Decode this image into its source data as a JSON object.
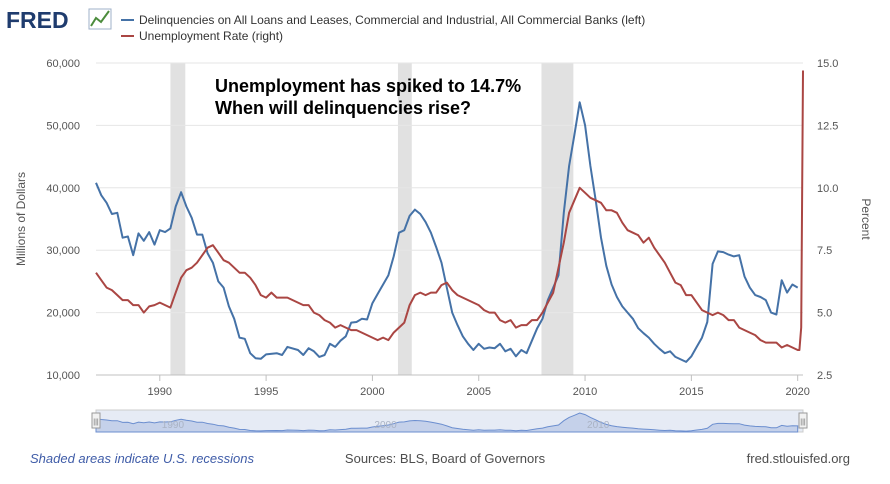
{
  "brand": {
    "logo_text": "FRED"
  },
  "colors": {
    "left_series": "#4572a7",
    "right_series": "#aa4643",
    "recession": "#e1e1e1",
    "grid": "#e6e6e6",
    "navigator_fill": "#c5d1ea",
    "navigator_line": "#6b8ecf"
  },
  "chart_data": {
    "type": "line",
    "title": "",
    "annotation": [
      "Unemployment has spiked to 14.7%",
      "When will delinquencies rise?"
    ],
    "xlabel": "",
    "x_ticks": [
      "1990",
      "1995",
      "2000",
      "2005",
      "2010",
      "2015",
      "2020"
    ],
    "xlim": [
      1987.0,
      2020.25
    ],
    "y_left": {
      "label": "Millions of Dollars",
      "range": [
        10000,
        60000
      ],
      "ticks": [
        "10,000",
        "20,000",
        "30,000",
        "40,000",
        "50,000",
        "60,000"
      ]
    },
    "y_right": {
      "label": "Percent",
      "range": [
        2.5,
        15.0
      ],
      "ticks": [
        "2.5",
        "5.0",
        "7.5",
        "10.0",
        "12.5",
        "15.0"
      ]
    },
    "grid": true,
    "legend_position": "top-left",
    "recessions": [
      [
        1990.5,
        1991.2
      ],
      [
        2001.2,
        2001.85
      ],
      [
        2007.95,
        2009.45
      ]
    ],
    "series": [
      {
        "name": "Delinquencies on All Loans and Leases, Commercial and Industrial, All Commercial Banks (left)",
        "axis": "left",
        "points": [
          [
            1987.0,
            40800
          ],
          [
            1987.25,
            38800
          ],
          [
            1987.5,
            37600
          ],
          [
            1987.75,
            35800
          ],
          [
            1988.0,
            36000
          ],
          [
            1988.25,
            32000
          ],
          [
            1988.5,
            32200
          ],
          [
            1988.75,
            29200
          ],
          [
            1989.0,
            32700
          ],
          [
            1989.25,
            31500
          ],
          [
            1989.5,
            32900
          ],
          [
            1989.75,
            30900
          ],
          [
            1990.0,
            33200
          ],
          [
            1990.25,
            32900
          ],
          [
            1990.5,
            33500
          ],
          [
            1990.75,
            37000
          ],
          [
            1991.0,
            39300
          ],
          [
            1991.25,
            37000
          ],
          [
            1991.5,
            35200
          ],
          [
            1991.75,
            32500
          ],
          [
            1992.0,
            32500
          ],
          [
            1992.25,
            29500
          ],
          [
            1992.5,
            28000
          ],
          [
            1992.75,
            25000
          ],
          [
            1993.0,
            24000
          ],
          [
            1993.25,
            21000
          ],
          [
            1993.5,
            19000
          ],
          [
            1993.75,
            16000
          ],
          [
            1994.0,
            15800
          ],
          [
            1994.25,
            13500
          ],
          [
            1994.5,
            12700
          ],
          [
            1994.75,
            12600
          ],
          [
            1995.0,
            13300
          ],
          [
            1995.5,
            13500
          ],
          [
            1995.75,
            13200
          ],
          [
            1996.0,
            14500
          ],
          [
            1996.5,
            14000
          ],
          [
            1996.75,
            13200
          ],
          [
            1997.0,
            14300
          ],
          [
            1997.25,
            13800
          ],
          [
            1997.5,
            12900
          ],
          [
            1997.75,
            13200
          ],
          [
            1998.0,
            15000
          ],
          [
            1998.25,
            14500
          ],
          [
            1998.5,
            15500
          ],
          [
            1998.75,
            16200
          ],
          [
            1999.0,
            18400
          ],
          [
            1999.25,
            18500
          ],
          [
            1999.5,
            19000
          ],
          [
            1999.75,
            18900
          ],
          [
            2000.0,
            21500
          ],
          [
            2000.25,
            23000
          ],
          [
            2000.5,
            24500
          ],
          [
            2000.75,
            26000
          ],
          [
            2001.0,
            29000
          ],
          [
            2001.25,
            32800
          ],
          [
            2001.5,
            33200
          ],
          [
            2001.75,
            35500
          ],
          [
            2002.0,
            36500
          ],
          [
            2002.25,
            35800
          ],
          [
            2002.5,
            34500
          ],
          [
            2002.75,
            32800
          ],
          [
            2003.0,
            30500
          ],
          [
            2003.25,
            28000
          ],
          [
            2003.5,
            24000
          ],
          [
            2003.75,
            20000
          ],
          [
            2004.0,
            18000
          ],
          [
            2004.25,
            16200
          ],
          [
            2004.5,
            15000
          ],
          [
            2004.75,
            14000
          ],
          [
            2005.0,
            15000
          ],
          [
            2005.25,
            14200
          ],
          [
            2005.5,
            14400
          ],
          [
            2005.75,
            14300
          ],
          [
            2006.0,
            15000
          ],
          [
            2006.25,
            13800
          ],
          [
            2006.5,
            14200
          ],
          [
            2006.75,
            13000
          ],
          [
            2007.0,
            14000
          ],
          [
            2007.25,
            13500
          ],
          [
            2007.5,
            15500
          ],
          [
            2007.75,
            17500
          ],
          [
            2008.0,
            19000
          ],
          [
            2008.25,
            22000
          ],
          [
            2008.5,
            24000
          ],
          [
            2008.75,
            26000
          ],
          [
            2009.0,
            36000
          ],
          [
            2009.25,
            43500
          ],
          [
            2009.5,
            48500
          ],
          [
            2009.75,
            53700
          ],
          [
            2010.0,
            50000
          ],
          [
            2010.25,
            43500
          ],
          [
            2010.5,
            38000
          ],
          [
            2010.75,
            32000
          ],
          [
            2011.0,
            27500
          ],
          [
            2011.25,
            24500
          ],
          [
            2011.5,
            22500
          ],
          [
            2011.75,
            21000
          ],
          [
            2012.0,
            20000
          ],
          [
            2012.25,
            19000
          ],
          [
            2012.5,
            17500
          ],
          [
            2012.75,
            16700
          ],
          [
            2013.0,
            16000
          ],
          [
            2013.25,
            15000
          ],
          [
            2013.5,
            14200
          ],
          [
            2013.75,
            13500
          ],
          [
            2014.0,
            13800
          ],
          [
            2014.25,
            12900
          ],
          [
            2014.5,
            12500
          ],
          [
            2014.75,
            12100
          ],
          [
            2015.0,
            13000
          ],
          [
            2015.25,
            14500
          ],
          [
            2015.5,
            16000
          ],
          [
            2015.75,
            18500
          ],
          [
            2016.0,
            27800
          ],
          [
            2016.25,
            29800
          ],
          [
            2016.5,
            29700
          ],
          [
            2016.75,
            29300
          ],
          [
            2017.0,
            29000
          ],
          [
            2017.25,
            29200
          ],
          [
            2017.5,
            25800
          ],
          [
            2017.75,
            24000
          ],
          [
            2018.0,
            22800
          ],
          [
            2018.25,
            22500
          ],
          [
            2018.5,
            22000
          ],
          [
            2018.75,
            20000
          ],
          [
            2019.0,
            19700
          ],
          [
            2019.25,
            25200
          ],
          [
            2019.5,
            23200
          ],
          [
            2019.75,
            24500
          ],
          [
            2020.0,
            24000
          ]
        ]
      },
      {
        "name": "Unemployment Rate (right)",
        "axis": "right",
        "points": [
          [
            1987.0,
            6.6
          ],
          [
            1987.25,
            6.3
          ],
          [
            1987.5,
            6.0
          ],
          [
            1987.75,
            5.9
          ],
          [
            1988.0,
            5.7
          ],
          [
            1988.25,
            5.5
          ],
          [
            1988.5,
            5.5
          ],
          [
            1988.75,
            5.3
          ],
          [
            1989.0,
            5.3
          ],
          [
            1989.25,
            5.0
          ],
          [
            1989.5,
            5.25
          ],
          [
            1989.75,
            5.3
          ],
          [
            1990.0,
            5.4
          ],
          [
            1990.25,
            5.3
          ],
          [
            1990.5,
            5.2
          ],
          [
            1990.75,
            5.8
          ],
          [
            1991.0,
            6.4
          ],
          [
            1991.25,
            6.7
          ],
          [
            1991.5,
            6.8
          ],
          [
            1991.75,
            7.0
          ],
          [
            1992.0,
            7.3
          ],
          [
            1992.25,
            7.6
          ],
          [
            1992.5,
            7.7
          ],
          [
            1992.75,
            7.4
          ],
          [
            1993.0,
            7.1
          ],
          [
            1993.25,
            7.0
          ],
          [
            1993.5,
            6.8
          ],
          [
            1993.75,
            6.6
          ],
          [
            1994.0,
            6.6
          ],
          [
            1994.25,
            6.4
          ],
          [
            1994.5,
            6.1
          ],
          [
            1994.75,
            5.7
          ],
          [
            1995.0,
            5.6
          ],
          [
            1995.25,
            5.8
          ],
          [
            1995.5,
            5.6
          ],
          [
            1995.75,
            5.6
          ],
          [
            1996.0,
            5.6
          ],
          [
            1996.25,
            5.5
          ],
          [
            1996.5,
            5.4
          ],
          [
            1996.75,
            5.3
          ],
          [
            1997.0,
            5.3
          ],
          [
            1997.25,
            5.0
          ],
          [
            1997.5,
            4.9
          ],
          [
            1997.75,
            4.7
          ],
          [
            1998.0,
            4.6
          ],
          [
            1998.25,
            4.4
          ],
          [
            1998.5,
            4.5
          ],
          [
            1998.75,
            4.4
          ],
          [
            1999.0,
            4.3
          ],
          [
            1999.25,
            4.3
          ],
          [
            1999.5,
            4.2
          ],
          [
            1999.75,
            4.1
          ],
          [
            2000.0,
            4.0
          ],
          [
            2000.25,
            3.9
          ],
          [
            2000.5,
            4.0
          ],
          [
            2000.75,
            3.9
          ],
          [
            2001.0,
            4.2
          ],
          [
            2001.25,
            4.4
          ],
          [
            2001.5,
            4.6
          ],
          [
            2001.75,
            5.3
          ],
          [
            2002.0,
            5.7
          ],
          [
            2002.25,
            5.8
          ],
          [
            2002.5,
            5.7
          ],
          [
            2002.75,
            5.8
          ],
          [
            2003.0,
            5.8
          ],
          [
            2003.25,
            6.1
          ],
          [
            2003.5,
            6.2
          ],
          [
            2003.75,
            5.9
          ],
          [
            2004.0,
            5.7
          ],
          [
            2004.25,
            5.6
          ],
          [
            2004.5,
            5.5
          ],
          [
            2004.75,
            5.4
          ],
          [
            2005.0,
            5.3
          ],
          [
            2005.25,
            5.1
          ],
          [
            2005.5,
            5.0
          ],
          [
            2005.75,
            5.0
          ],
          [
            2006.0,
            4.7
          ],
          [
            2006.25,
            4.6
          ],
          [
            2006.5,
            4.7
          ],
          [
            2006.75,
            4.4
          ],
          [
            2007.0,
            4.5
          ],
          [
            2007.25,
            4.5
          ],
          [
            2007.5,
            4.7
          ],
          [
            2007.75,
            4.7
          ],
          [
            2008.0,
            5.0
          ],
          [
            2008.25,
            5.4
          ],
          [
            2008.5,
            5.8
          ],
          [
            2008.75,
            6.8
          ],
          [
            2009.0,
            7.8
          ],
          [
            2009.25,
            9.0
          ],
          [
            2009.5,
            9.5
          ],
          [
            2009.75,
            10.0
          ],
          [
            2010.0,
            9.8
          ],
          [
            2010.25,
            9.6
          ],
          [
            2010.5,
            9.5
          ],
          [
            2010.75,
            9.4
          ],
          [
            2011.0,
            9.1
          ],
          [
            2011.25,
            9.1
          ],
          [
            2011.5,
            9.0
          ],
          [
            2011.75,
            8.6
          ],
          [
            2012.0,
            8.3
          ],
          [
            2012.25,
            8.2
          ],
          [
            2012.5,
            8.1
          ],
          [
            2012.75,
            7.8
          ],
          [
            2013.0,
            8.0
          ],
          [
            2013.25,
            7.6
          ],
          [
            2013.5,
            7.3
          ],
          [
            2013.75,
            7.0
          ],
          [
            2014.0,
            6.6
          ],
          [
            2014.25,
            6.2
          ],
          [
            2014.5,
            6.1
          ],
          [
            2014.75,
            5.7
          ],
          [
            2015.0,
            5.7
          ],
          [
            2015.25,
            5.4
          ],
          [
            2015.5,
            5.1
          ],
          [
            2015.75,
            5.0
          ],
          [
            2016.0,
            4.9
          ],
          [
            2016.25,
            5.0
          ],
          [
            2016.5,
            4.9
          ],
          [
            2016.75,
            4.7
          ],
          [
            2017.0,
            4.7
          ],
          [
            2017.25,
            4.4
          ],
          [
            2017.5,
            4.3
          ],
          [
            2017.75,
            4.2
          ],
          [
            2018.0,
            4.1
          ],
          [
            2018.25,
            3.9
          ],
          [
            2018.5,
            3.8
          ],
          [
            2018.75,
            3.8
          ],
          [
            2019.0,
            3.8
          ],
          [
            2019.25,
            3.6
          ],
          [
            2019.5,
            3.7
          ],
          [
            2019.75,
            3.6
          ],
          [
            2020.0,
            3.5
          ],
          [
            2020.083,
            3.5
          ],
          [
            2020.167,
            4.4
          ],
          [
            2020.25,
            14.7
          ]
        ]
      }
    ]
  },
  "navigator": {
    "labels": [
      "1990",
      "2000",
      "2010"
    ],
    "left_handle": "|||",
    "right_handle": "|||"
  },
  "footer": {
    "note": "Shaded areas indicate U.S. recessions",
    "sources": "Sources: BLS, Board of Governors",
    "site": "fred.stlouisfed.org"
  }
}
